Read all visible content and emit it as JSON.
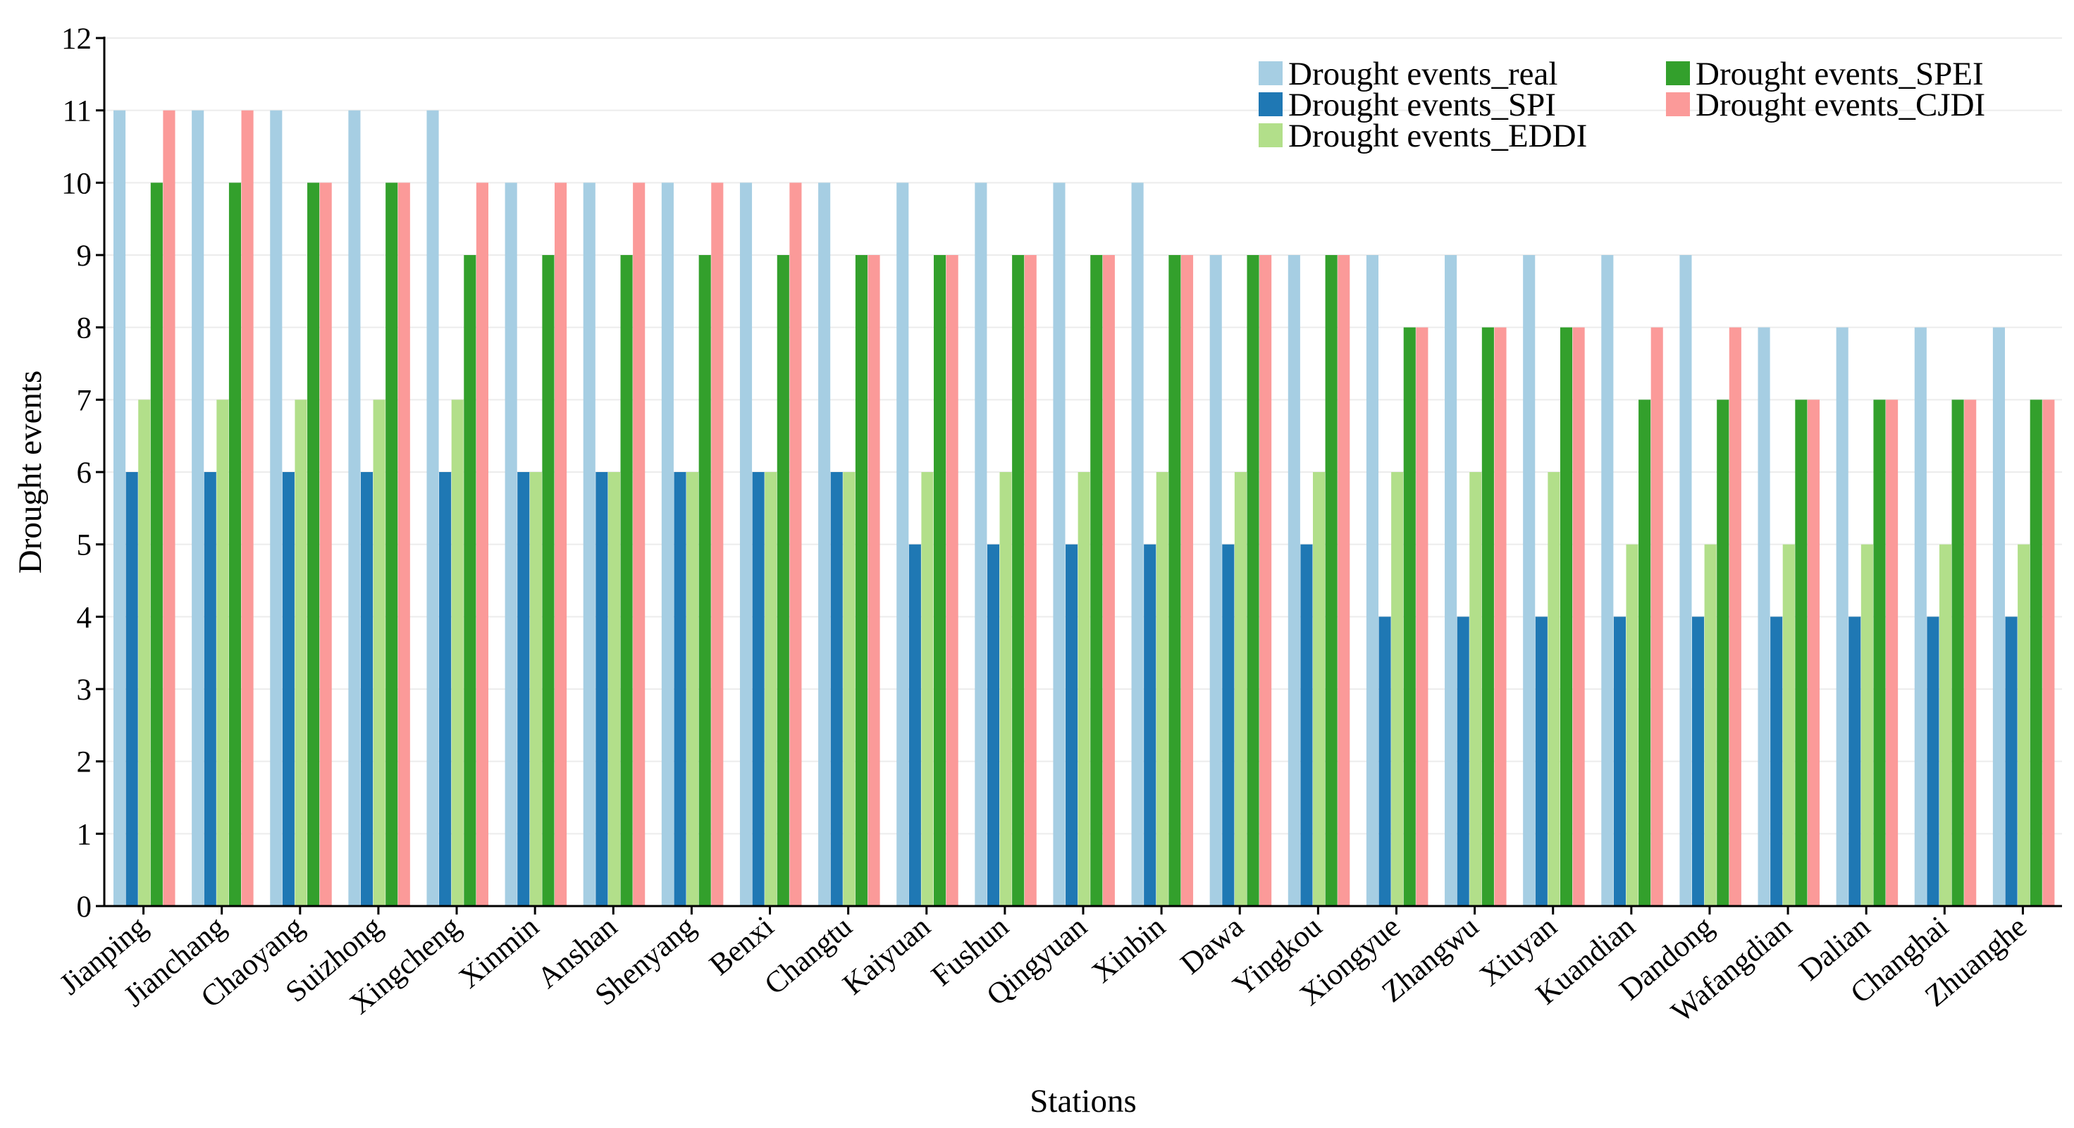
{
  "chart_data": {
    "type": "bar",
    "title": "",
    "xlabel": "Stations",
    "ylabel": "Drought events",
    "ylim": [
      0,
      12
    ],
    "yticks": [
      0,
      1,
      2,
      3,
      4,
      5,
      6,
      7,
      8,
      9,
      10,
      11,
      12
    ],
    "grid": "horizontal",
    "legend_position": "top-right",
    "categories": [
      "Jianping",
      "Jianchang",
      "Chaoyang",
      "Suizhong",
      "Xingcheng",
      "Xinmin",
      "Anshan",
      "Shenyang",
      "Benxi",
      "Changtu",
      "Kaiyuan",
      "Fushun",
      "Qingyuan",
      "Xinbin",
      "Dawa",
      "Yingkou",
      "Xiongyue",
      "Zhangwu",
      "Xiuyan",
      "Kuandian",
      "Dandong",
      "Wafangdian",
      "Dalian",
      "Changhai",
      "Zhuanghe"
    ],
    "series": [
      {
        "name": "Drought events_real",
        "color": "#a6cee3",
        "values": [
          11,
          11,
          11,
          11,
          11,
          10,
          10,
          10,
          10,
          10,
          10,
          10,
          10,
          10,
          9,
          9,
          9,
          9,
          9,
          9,
          9,
          8,
          8,
          8,
          8
        ]
      },
      {
        "name": "Drought events_SPI",
        "color": "#1f78b4",
        "values": [
          6,
          6,
          6,
          6,
          6,
          6,
          6,
          6,
          6,
          6,
          5,
          5,
          5,
          5,
          5,
          5,
          4,
          4,
          4,
          4,
          4,
          4,
          4,
          4,
          4
        ]
      },
      {
        "name": "Drought events_EDDI",
        "color": "#b2df8a",
        "values": [
          7,
          7,
          7,
          7,
          7,
          6,
          6,
          6,
          6,
          6,
          6,
          6,
          6,
          6,
          6,
          6,
          6,
          6,
          6,
          5,
          5,
          5,
          5,
          5,
          5
        ]
      },
      {
        "name": "Drought events_SPEI",
        "color": "#33a02c",
        "values": [
          10,
          10,
          10,
          10,
          9,
          9,
          9,
          9,
          9,
          9,
          9,
          9,
          9,
          9,
          9,
          9,
          8,
          8,
          8,
          7,
          7,
          7,
          7,
          7,
          7
        ]
      },
      {
        "name": "Drought events_CJDI",
        "color": "#fb9a99",
        "values": [
          11,
          11,
          10,
          10,
          10,
          10,
          10,
          10,
          10,
          9,
          9,
          9,
          9,
          9,
          9,
          9,
          8,
          8,
          8,
          8,
          8,
          7,
          7,
          7,
          7
        ]
      }
    ],
    "legend_order": [
      0,
      3,
      1,
      4,
      2
    ]
  }
}
